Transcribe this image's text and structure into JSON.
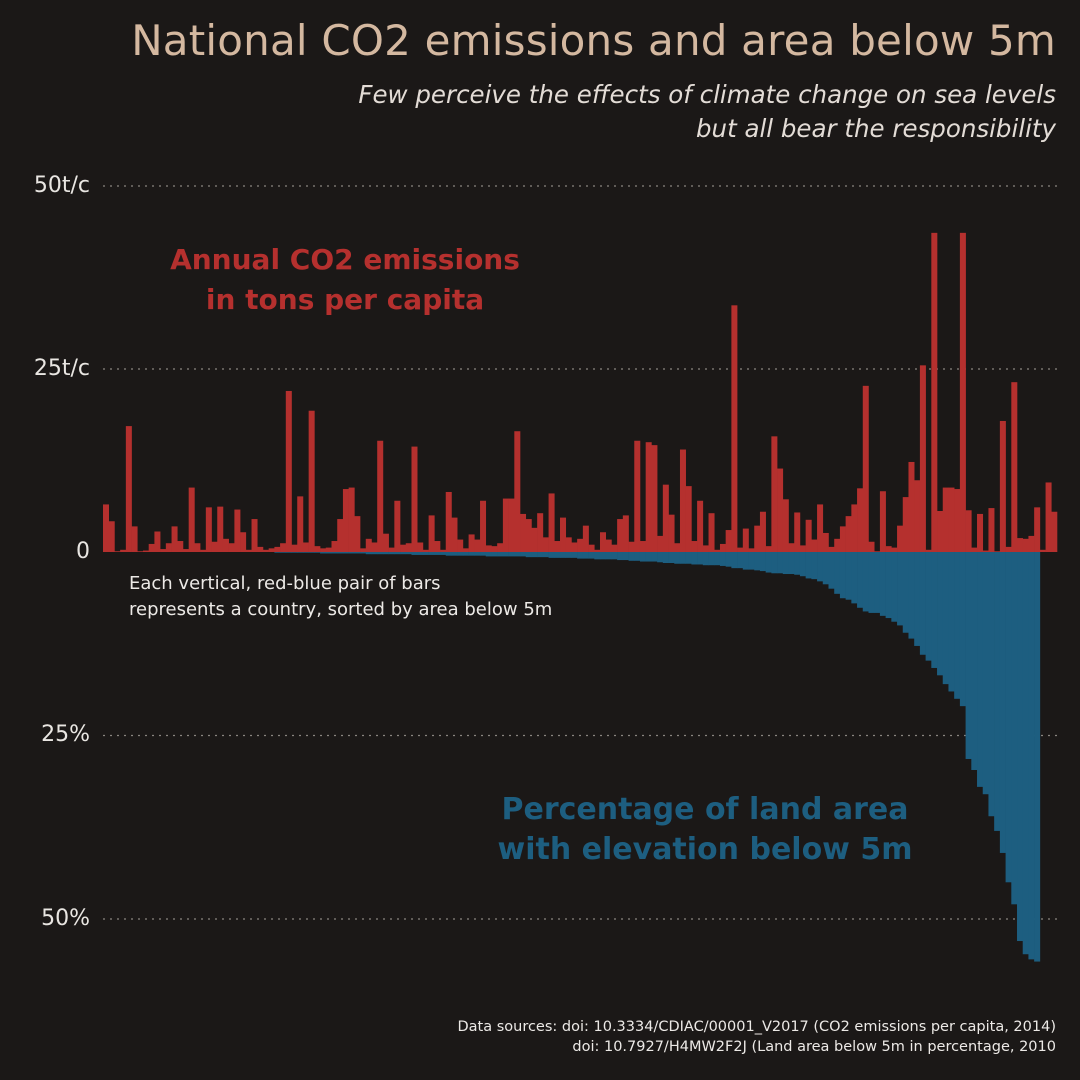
{
  "title": "National CO2 emissions and area below 5m",
  "subtitle_line1": "Few perceive the effects of climate change on sea levels",
  "subtitle_line2": "but all bear the responsibility",
  "annotations": {
    "co2_line1": "Annual CO2 emissions",
    "co2_line2": "in tons per capita",
    "area_line1": "Percentage of land area",
    "area_line2": "with elevation below 5m",
    "note_line1": "Each vertical, red-blue pair of bars",
    "note_line2": "represents a country, sorted by area below 5m"
  },
  "sources": {
    "line1": "Data sources: doi: 10.3334/CDIAC/00001_V2017 (CO2 emissions per capita, 2014)",
    "line2": "doi: 10.7927/H4MW2F2J (Land area below 5m in percentage, 2010"
  },
  "colors": {
    "background": "#1b1817",
    "co2_bar": "#b5302e",
    "area_bar": "#1d5e80",
    "title": "#d4b8a0",
    "grid": "#8a8580"
  },
  "chart_data": {
    "type": "bar",
    "layout": "mirrored",
    "sort_order": "ascending by area below 5m",
    "y_axis_top": {
      "label": "Annual CO2 emissions in tons per capita",
      "ticks": [
        {
          "value": 50,
          "label": "50t/c"
        },
        {
          "value": 25,
          "label": "25t/c"
        },
        {
          "value": 0,
          "label": "0"
        }
      ],
      "range": [
        0,
        50
      ]
    },
    "y_axis_bottom": {
      "label": "Percentage of land area with elevation below 5m",
      "ticks": [
        {
          "value": 25,
          "label": "25%"
        },
        {
          "value": 50,
          "label": "50%"
        }
      ],
      "range": [
        0,
        50
      ]
    },
    "grid": true,
    "series": [
      {
        "name": "Annual CO2 emissions in tons per capita",
        "values": [
          6.5,
          4.2,
          0.1,
          0.3,
          17.2,
          3.5,
          0.1,
          0.2,
          1.1,
          2.8,
          0.4,
          1.2,
          3.5,
          1.5,
          0.4,
          8.8,
          1.2,
          0.3,
          6.1,
          1.4,
          6.2,
          1.8,
          1.2,
          5.8,
          2.7,
          0.3,
          4.5,
          0.7,
          0.3,
          0.5,
          0.7,
          1.2,
          22.0,
          1.0,
          7.6,
          1.3,
          19.3,
          0.8,
          0.5,
          0.6,
          1.5,
          4.5,
          8.6,
          8.8,
          4.9,
          0.5,
          1.8,
          1.3,
          15.2,
          2.5,
          0.6,
          7.0,
          1.0,
          1.2,
          14.4,
          1.3,
          0.3,
          5.0,
          1.5,
          0.3,
          8.2,
          4.7,
          1.7,
          0.5,
          2.4,
          1.7,
          7.0,
          0.9,
          0.8,
          1.2,
          7.3,
          7.3,
          16.5,
          5.2,
          4.5,
          3.3,
          5.3,
          2.0,
          8.0,
          1.5,
          4.7,
          2.0,
          1.3,
          1.8,
          3.6,
          1.0,
          0.3,
          2.7,
          1.7,
          1.0,
          4.5,
          5.0,
          1.4,
          15.2,
          1.5,
          15.0,
          14.6,
          2.2,
          9.2,
          5.1,
          1.2,
          14.0,
          9.0,
          1.5,
          7.0,
          0.9,
          5.3,
          0.3,
          1.1,
          3.0,
          33.7,
          0.6,
          3.2,
          0.5,
          3.6,
          5.5,
          0.8,
          15.8,
          11.4,
          7.2,
          1.2,
          5.4,
          0.9,
          4.4,
          1.7,
          6.5,
          2.6,
          0.7,
          1.8,
          3.5,
          4.9,
          6.5,
          8.7,
          22.7,
          1.4,
          0.1,
          8.3,
          0.8,
          0.6,
          3.6,
          7.5,
          12.3,
          9.8,
          25.5,
          0.3,
          43.6,
          5.6,
          8.8,
          8.8,
          8.6,
          43.6,
          5.7,
          0.6,
          5.2,
          0.2,
          6.0,
          0.1,
          17.9,
          0.7,
          23.2,
          1.9,
          1.8,
          2.2,
          6.1,
          0.3,
          9.5,
          5.5
        ]
      },
      {
        "name": "Percentage of land area with elevation below 5m",
        "values": [
          0.0,
          0.0,
          0.0,
          0.0,
          0.0,
          0.0,
          0.0,
          0.0,
          0.0,
          0.0,
          0.0,
          0.0,
          0.0,
          0.0,
          0.0,
          0.0,
          0.0,
          0.0,
          0.0,
          0.0,
          0.0,
          0.0,
          0.0,
          0.0,
          0.0,
          0.0,
          0.0,
          0.0,
          0.0,
          0.0,
          0.1,
          0.1,
          0.1,
          0.1,
          0.1,
          0.1,
          0.1,
          0.1,
          0.2,
          0.2,
          0.2,
          0.2,
          0.2,
          0.2,
          0.2,
          0.2,
          0.3,
          0.3,
          0.3,
          0.3,
          0.3,
          0.3,
          0.3,
          0.3,
          0.4,
          0.4,
          0.4,
          0.4,
          0.4,
          0.4,
          0.5,
          0.5,
          0.5,
          0.5,
          0.5,
          0.5,
          0.5,
          0.6,
          0.6,
          0.6,
          0.6,
          0.6,
          0.6,
          0.6,
          0.7,
          0.7,
          0.7,
          0.7,
          0.8,
          0.8,
          0.8,
          0.8,
          0.8,
          0.9,
          0.9,
          0.9,
          1.0,
          1.0,
          1.0,
          1.0,
          1.1,
          1.1,
          1.2,
          1.2,
          1.3,
          1.3,
          1.3,
          1.4,
          1.5,
          1.5,
          1.6,
          1.6,
          1.6,
          1.7,
          1.7,
          1.8,
          1.8,
          1.8,
          1.9,
          2.0,
          2.2,
          2.2,
          2.4,
          2.4,
          2.5,
          2.6,
          2.8,
          2.9,
          2.9,
          3.0,
          3.0,
          3.1,
          3.3,
          3.6,
          3.7,
          4.0,
          4.4,
          5.0,
          5.7,
          6.3,
          6.5,
          7.0,
          7.6,
          8.1,
          8.3,
          8.3,
          8.7,
          9.0,
          9.5,
          10.0,
          11.0,
          11.8,
          12.8,
          14.0,
          14.8,
          15.8,
          16.8,
          18.0,
          19.0,
          20.0,
          21.0,
          28.2,
          29.7,
          32.0,
          33.0,
          36.0,
          38.0,
          41.0,
          45.0,
          48.0,
          53.0,
          54.8,
          55.5,
          55.8
        ]
      }
    ]
  }
}
